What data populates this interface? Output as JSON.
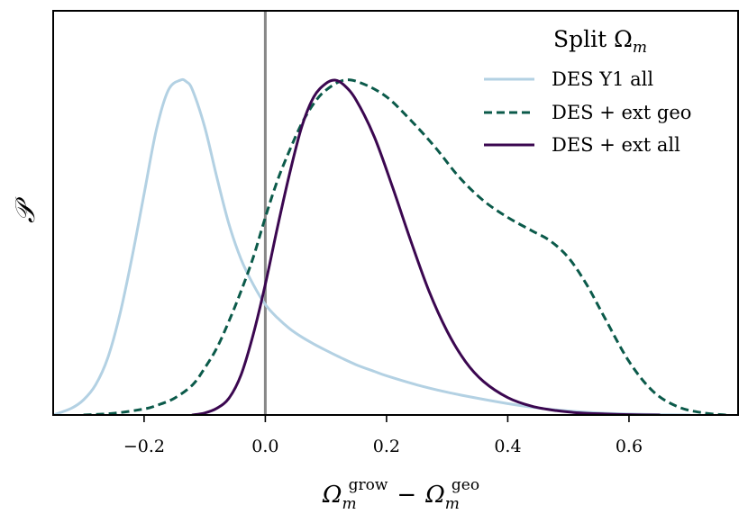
{
  "chart_data": {
    "type": "line",
    "title": "",
    "xlabel": {
      "base": "Ω",
      "sub": "m",
      "sup1": "grow",
      "minus": "−",
      "sup2": "geo"
    },
    "ylabel": "𝒫",
    "xlim": [
      -0.35,
      0.78
    ],
    "ylim": [
      0,
      1.2
    ],
    "xticks": [
      -0.2,
      0.0,
      0.2,
      0.4,
      0.6
    ],
    "xtick_labels": [
      "−0.2",
      "0.0",
      "0.2",
      "0.4",
      "0.6"
    ],
    "yticks_shown": false,
    "vline": {
      "x": 0.0,
      "color": "#888888"
    },
    "legend": {
      "title": "Split Ω",
      "title_sub": "m",
      "placement": "top-right"
    },
    "series": [
      {
        "name": "DES Y1 all",
        "color": "#b3d1e3",
        "style": "solid",
        "x": [
          -0.35,
          -0.32,
          -0.3,
          -0.28,
          -0.26,
          -0.24,
          -0.22,
          -0.2,
          -0.18,
          -0.16,
          -0.14,
          -0.13,
          -0.12,
          -0.1,
          -0.08,
          -0.06,
          -0.04,
          -0.02,
          0.0,
          0.02,
          0.04,
          0.06,
          0.08,
          0.1,
          0.12,
          0.15,
          0.18,
          0.2,
          0.25,
          0.3,
          0.35,
          0.4,
          0.45,
          0.5,
          0.55,
          0.6,
          0.65,
          0.7
        ],
        "y": [
          0.0,
          0.02,
          0.045,
          0.09,
          0.17,
          0.3,
          0.47,
          0.66,
          0.85,
          0.97,
          1.0,
          0.995,
          0.97,
          0.86,
          0.71,
          0.57,
          0.465,
          0.39,
          0.33,
          0.29,
          0.258,
          0.233,
          0.212,
          0.193,
          0.175,
          0.15,
          0.13,
          0.117,
          0.09,
          0.068,
          0.05,
          0.034,
          0.021,
          0.012,
          0.006,
          0.003,
          0.001,
          0.0
        ]
      },
      {
        "name": "DES + ext geo",
        "color": "#0b5a4a",
        "style": "dashed",
        "x": [
          -0.3,
          -0.25,
          -0.2,
          -0.18,
          -0.15,
          -0.12,
          -0.1,
          -0.08,
          -0.06,
          -0.04,
          -0.02,
          0.0,
          0.02,
          0.04,
          0.06,
          0.08,
          0.1,
          0.13,
          0.16,
          0.2,
          0.24,
          0.28,
          0.32,
          0.36,
          0.4,
          0.44,
          0.47,
          0.5,
          0.53,
          0.56,
          0.6,
          0.64,
          0.68,
          0.72,
          0.76
        ],
        "y": [
          0.0,
          0.005,
          0.018,
          0.028,
          0.05,
          0.09,
          0.14,
          0.2,
          0.28,
          0.37,
          0.47,
          0.59,
          0.7,
          0.79,
          0.87,
          0.93,
          0.97,
          1.0,
          0.99,
          0.95,
          0.88,
          0.8,
          0.71,
          0.64,
          0.59,
          0.55,
          0.52,
          0.47,
          0.39,
          0.29,
          0.16,
          0.07,
          0.025,
          0.007,
          0.0
        ]
      },
      {
        "name": "DES + ext all",
        "color": "#3b0750",
        "style": "solid",
        "x": [
          -0.12,
          -0.1,
          -0.08,
          -0.06,
          -0.04,
          -0.02,
          0.0,
          0.02,
          0.04,
          0.06,
          0.08,
          0.1,
          0.115,
          0.13,
          0.15,
          0.18,
          0.21,
          0.24,
          0.27,
          0.3,
          0.33,
          0.36,
          0.4,
          0.44,
          0.48,
          0.52,
          0.56,
          0.6,
          0.65
        ],
        "y": [
          0.0,
          0.006,
          0.02,
          0.05,
          0.12,
          0.24,
          0.39,
          0.56,
          0.72,
          0.86,
          0.95,
          0.99,
          1.0,
          0.985,
          0.94,
          0.83,
          0.68,
          0.52,
          0.37,
          0.25,
          0.16,
          0.1,
          0.052,
          0.026,
          0.013,
          0.006,
          0.003,
          0.001,
          0.0
        ]
      }
    ]
  }
}
